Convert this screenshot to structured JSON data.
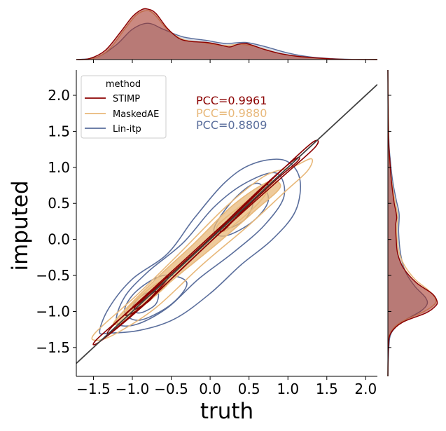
{
  "chart_data": {
    "type": "scatter",
    "subtype": "joint-kde-contour",
    "xlabel": "truth",
    "ylabel": "imputed",
    "xlim": [
      -1.72,
      2.15
    ],
    "ylim": [
      -1.9,
      2.35
    ],
    "xticks": [
      -1.5,
      -1.0,
      -0.5,
      0.0,
      0.5,
      1.0,
      1.5,
      2.0
    ],
    "yticks": [
      -1.5,
      -1.0,
      -0.5,
      0.0,
      0.5,
      1.0,
      1.5,
      2.0
    ],
    "xtick_labels": [
      "−1.5",
      "−1.0",
      "−0.5",
      "0.0",
      "0.5",
      "1.0",
      "1.5",
      "2.0"
    ],
    "ytick_labels": [
      "−1.5",
      "−1.0",
      "−0.5",
      "0.0",
      "0.5",
      "1.0",
      "1.5",
      "2.0"
    ],
    "grid": false,
    "legend": {
      "title": "method",
      "position": "top-left",
      "entries": [
        {
          "label": "STIMP",
          "color": "#8b0000"
        },
        {
          "label": "MaskedAE",
          "color": "#e8b87a"
        },
        {
          "label": "Lin-itp",
          "color": "#5a6e9c"
        }
      ]
    },
    "annotations": [
      {
        "text": "PCC=0.9961",
        "color": "#8b0000"
      },
      {
        "text": "PCC=0.9880",
        "color": "#e8b87a"
      },
      {
        "text": "PCC=0.8809",
        "color": "#5a6e9c"
      }
    ],
    "identity_line": {
      "x": [
        -1.72,
        2.15
      ],
      "y": [
        -1.72,
        2.15
      ],
      "color": "#404040"
    },
    "series": [
      {
        "name": "STIMP",
        "color": "#8b0000",
        "contours": [
          [
            [
              -1.45,
              -1.38
            ],
            [
              -0.9,
              -0.86
            ],
            [
              -0.3,
              -0.28
            ],
            [
              0.3,
              0.32
            ],
            [
              0.9,
              0.94
            ],
            [
              1.32,
              1.35
            ],
            [
              1.35,
              1.28
            ],
            [
              0.92,
              0.86
            ],
            [
              0.3,
              0.26
            ],
            [
              -0.3,
              -0.34
            ],
            [
              -0.9,
              -0.96
            ],
            [
              -1.42,
              -1.42
            ]
          ],
          [
            [
              -1.25,
              -1.2
            ],
            [
              -0.6,
              -0.55
            ],
            [
              0.2,
              0.24
            ],
            [
              0.8,
              0.85
            ],
            [
              1.1,
              1.12
            ],
            [
              1.12,
              1.08
            ],
            [
              0.8,
              0.78
            ],
            [
              0.2,
              0.17
            ],
            [
              -0.6,
              -0.65
            ],
            [
              -1.23,
              -1.25
            ]
          ],
          [
            [
              -1.05,
              -1.0
            ],
            [
              -0.7,
              -0.68
            ],
            [
              -0.55,
              -0.52
            ],
            [
              -0.6,
              -0.62
            ],
            [
              -0.9,
              -0.95
            ],
            [
              -1.06,
              -1.05
            ]
          ],
          [
            [
              0.15,
              0.18
            ],
            [
              0.45,
              0.5
            ],
            [
              0.7,
              0.75
            ],
            [
              0.72,
              0.7
            ],
            [
              0.45,
              0.44
            ],
            [
              0.18,
              0.13
            ]
          ],
          [
            [
              -0.95,
              -0.92
            ],
            [
              -0.78,
              -0.78
            ],
            [
              -0.7,
              -0.72
            ],
            [
              -0.78,
              -0.85
            ],
            [
              -0.96,
              -0.97
            ]
          ]
        ],
        "marginal_x": [
          [
            -1.72,
            0
          ],
          [
            -1.55,
            0.02
          ],
          [
            -1.35,
            0.18
          ],
          [
            -1.15,
            0.55
          ],
          [
            -1.0,
            0.85
          ],
          [
            -0.88,
            0.99
          ],
          [
            -0.8,
            1.0
          ],
          [
            -0.7,
            0.92
          ],
          [
            -0.55,
            0.62
          ],
          [
            -0.4,
            0.42
          ],
          [
            -0.25,
            0.36
          ],
          [
            -0.05,
            0.34
          ],
          [
            0.1,
            0.3
          ],
          [
            0.25,
            0.25
          ],
          [
            0.35,
            0.3
          ],
          [
            0.45,
            0.32
          ],
          [
            0.55,
            0.28
          ],
          [
            0.7,
            0.2
          ],
          [
            0.9,
            0.12
          ],
          [
            1.1,
            0.07
          ],
          [
            1.3,
            0.04
          ],
          [
            1.5,
            0.02
          ],
          [
            1.7,
            0.005
          ],
          [
            2.15,
            0
          ]
        ],
        "marginal_y": [
          [
            -1.9,
            0
          ],
          [
            -1.5,
            0.01
          ],
          [
            -1.3,
            0.06
          ],
          [
            -1.15,
            0.3
          ],
          [
            -1.02,
            0.78
          ],
          [
            -0.92,
            0.98
          ],
          [
            -0.85,
            1.0
          ],
          [
            -0.75,
            0.9
          ],
          [
            -0.6,
            0.58
          ],
          [
            -0.4,
            0.32
          ],
          [
            -0.2,
            0.2
          ],
          [
            0.0,
            0.17
          ],
          [
            0.2,
            0.16
          ],
          [
            0.3,
            0.18
          ],
          [
            0.4,
            0.16
          ],
          [
            0.5,
            0.13
          ],
          [
            0.7,
            0.09
          ],
          [
            0.9,
            0.06
          ],
          [
            1.1,
            0.04
          ],
          [
            1.3,
            0.02
          ],
          [
            1.6,
            0.005
          ],
          [
            2.35,
            0
          ]
        ]
      },
      {
        "name": "MaskedAE",
        "color": "#e8b87a",
        "contours": [
          [
            [
              -1.48,
              -1.3
            ],
            [
              -0.95,
              -0.78
            ],
            [
              -0.4,
              -0.2
            ],
            [
              0.2,
              0.45
            ],
            [
              0.7,
              0.88
            ],
            [
              1.05,
              1.0
            ],
            [
              1.3,
              1.12
            ],
            [
              1.25,
              0.95
            ],
            [
              0.95,
              0.65
            ],
            [
              0.5,
              0.2
            ],
            [
              -0.1,
              -0.35
            ],
            [
              -0.7,
              -0.95
            ],
            [
              -1.2,
              -1.3
            ],
            [
              -1.45,
              -1.4
            ]
          ],
          [
            [
              -1.2,
              -1.1
            ],
            [
              -0.7,
              -0.55
            ],
            [
              -0.2,
              -0.05
            ],
            [
              0.3,
              0.48
            ],
            [
              0.75,
              0.8
            ],
            [
              0.9,
              0.72
            ],
            [
              0.6,
              0.42
            ],
            [
              0.1,
              -0.05
            ],
            [
              -0.5,
              -0.58
            ],
            [
              -1.0,
              -1.05
            ],
            [
              -1.2,
              -1.18
            ]
          ],
          [
            [
              0.1,
              0.2
            ],
            [
              0.5,
              0.55
            ],
            [
              0.75,
              0.72
            ],
            [
              0.6,
              0.48
            ],
            [
              0.2,
              0.12
            ]
          ],
          [
            [
              -1.05,
              -0.95
            ],
            [
              -0.7,
              -0.62
            ],
            [
              -0.52,
              -0.58
            ],
            [
              -0.7,
              -0.78
            ],
            [
              -1.02,
              -1.04
            ]
          ]
        ],
        "marginal_x": [
          [
            -1.72,
            0
          ],
          [
            -1.5,
            0.02
          ],
          [
            -1.3,
            0.2
          ],
          [
            -1.1,
            0.6
          ],
          [
            -0.95,
            0.88
          ],
          [
            -0.82,
            0.97
          ],
          [
            -0.72,
            0.9
          ],
          [
            -0.55,
            0.6
          ],
          [
            -0.35,
            0.4
          ],
          [
            -0.1,
            0.34
          ],
          [
            0.15,
            0.28
          ],
          [
            0.4,
            0.3
          ],
          [
            0.6,
            0.25
          ],
          [
            0.9,
            0.12
          ],
          [
            1.2,
            0.05
          ],
          [
            1.6,
            0.01
          ],
          [
            2.15,
            0
          ]
        ],
        "marginal_y": [
          [
            -1.9,
            0
          ],
          [
            -1.5,
            0.01
          ],
          [
            -1.3,
            0.05
          ],
          [
            -1.15,
            0.26
          ],
          [
            -1.0,
            0.74
          ],
          [
            -0.9,
            0.95
          ],
          [
            -0.82,
            0.97
          ],
          [
            -0.7,
            0.82
          ],
          [
            -0.55,
            0.55
          ],
          [
            -0.35,
            0.33
          ],
          [
            -0.15,
            0.22
          ],
          [
            0.1,
            0.18
          ],
          [
            0.3,
            0.2
          ],
          [
            0.45,
            0.17
          ],
          [
            0.7,
            0.1
          ],
          [
            1.0,
            0.05
          ],
          [
            1.3,
            0.02
          ],
          [
            2.35,
            0
          ]
        ]
      },
      {
        "name": "Lin-itp",
        "color": "#5a6e9c",
        "contours": [
          [
            [
              -1.42,
              -1.28
            ],
            [
              -1.3,
              -0.95
            ],
            [
              -1.0,
              -0.55
            ],
            [
              -0.55,
              -0.2
            ],
            [
              -0.2,
              0.3
            ],
            [
              0.2,
              0.8
            ],
            [
              0.55,
              1.05
            ],
            [
              0.95,
              1.1
            ],
            [
              1.15,
              0.85
            ],
            [
              1.1,
              0.4
            ],
            [
              0.8,
              0.0
            ],
            [
              0.4,
              -0.35
            ],
            [
              0.0,
              -0.75
            ],
            [
              -0.45,
              -1.1
            ],
            [
              -0.9,
              -1.26
            ],
            [
              -1.3,
              -1.3
            ]
          ],
          [
            [
              -1.2,
              -1.15
            ],
            [
              -1.1,
              -0.8
            ],
            [
              -0.8,
              -0.45
            ],
            [
              -0.35,
              -0.05
            ],
            [
              0.05,
              0.45
            ],
            [
              0.45,
              0.78
            ],
            [
              0.85,
              0.92
            ],
            [
              0.95,
              0.6
            ],
            [
              0.7,
              0.2
            ],
            [
              0.3,
              -0.18
            ],
            [
              -0.15,
              -0.55
            ],
            [
              -0.55,
              -0.95
            ],
            [
              -0.95,
              -1.18
            ]
          ],
          [
            [
              -1.1,
              -1.0
            ],
            [
              -0.95,
              -0.72
            ],
            [
              -0.6,
              -0.5
            ],
            [
              -0.3,
              -0.6
            ],
            [
              -0.5,
              -0.9
            ],
            [
              -0.9,
              -1.12
            ]
          ],
          [
            [
              0.05,
              0.15
            ],
            [
              0.3,
              0.55
            ],
            [
              0.6,
              0.78
            ],
            [
              0.75,
              0.55
            ],
            [
              0.55,
              0.25
            ],
            [
              0.2,
              0.05
            ]
          ],
          [
            [
              -1.0,
              -0.95
            ],
            [
              -0.88,
              -0.78
            ],
            [
              -0.68,
              -0.72
            ],
            [
              -0.7,
              -0.9
            ],
            [
              -0.9,
              -1.02
            ]
          ],
          [
            [
              0.2,
              0.22
            ],
            [
              0.4,
              0.45
            ],
            [
              0.55,
              0.5
            ],
            [
              0.45,
              0.28
            ],
            [
              0.25,
              0.16
            ]
          ]
        ],
        "marginal_x": [
          [
            -1.72,
            0
          ],
          [
            -1.45,
            0.05
          ],
          [
            -1.2,
            0.3
          ],
          [
            -1.0,
            0.6
          ],
          [
            -0.8,
            0.72
          ],
          [
            -0.6,
            0.6
          ],
          [
            -0.35,
            0.45
          ],
          [
            -0.05,
            0.38
          ],
          [
            0.2,
            0.32
          ],
          [
            0.45,
            0.34
          ],
          [
            0.7,
            0.26
          ],
          [
            1.0,
            0.13
          ],
          [
            1.3,
            0.05
          ],
          [
            1.7,
            0.01
          ],
          [
            2.15,
            0
          ]
        ],
        "marginal_y": [
          [
            -1.9,
            0
          ],
          [
            -1.5,
            0.02
          ],
          [
            -1.3,
            0.07
          ],
          [
            -1.15,
            0.28
          ],
          [
            -1.0,
            0.66
          ],
          [
            -0.9,
            0.8
          ],
          [
            -0.8,
            0.76
          ],
          [
            -0.65,
            0.55
          ],
          [
            -0.45,
            0.36
          ],
          [
            -0.2,
            0.26
          ],
          [
            0.1,
            0.22
          ],
          [
            0.35,
            0.23
          ],
          [
            0.55,
            0.17
          ],
          [
            0.8,
            0.1
          ],
          [
            1.1,
            0.05
          ],
          [
            1.4,
            0.02
          ],
          [
            2.35,
            0
          ]
        ]
      }
    ]
  }
}
